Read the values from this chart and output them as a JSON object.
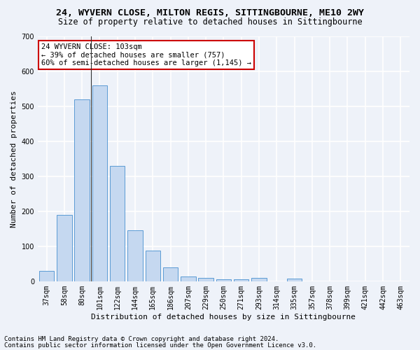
{
  "title1": "24, WYVERN CLOSE, MILTON REGIS, SITTINGBOURNE, ME10 2WY",
  "title2": "Size of property relative to detached houses in Sittingbourne",
  "xlabel": "Distribution of detached houses by size in Sittingbourne",
  "ylabel": "Number of detached properties",
  "footnote1": "Contains HM Land Registry data © Crown copyright and database right 2024.",
  "footnote2": "Contains public sector information licensed under the Open Government Licence v3.0.",
  "annotation_line1": "24 WYVERN CLOSE: 103sqm",
  "annotation_line2": "← 39% of detached houses are smaller (757)",
  "annotation_line3": "60% of semi-detached houses are larger (1,145) →",
  "categories": [
    "37sqm",
    "58sqm",
    "80sqm",
    "101sqm",
    "122sqm",
    "144sqm",
    "165sqm",
    "186sqm",
    "207sqm",
    "229sqm",
    "250sqm",
    "271sqm",
    "293sqm",
    "314sqm",
    "335sqm",
    "357sqm",
    "378sqm",
    "399sqm",
    "421sqm",
    "442sqm",
    "463sqm"
  ],
  "values": [
    30,
    190,
    520,
    560,
    330,
    145,
    87,
    40,
    13,
    10,
    5,
    5,
    10,
    0,
    7,
    0,
    0,
    0,
    0,
    0,
    0
  ],
  "bar_color": "#c5d8f0",
  "bar_edge_color": "#5b9bd5",
  "vline_color": "#333333",
  "annotation_box_edge": "#cc0000",
  "annotation_box_face": "#ffffff",
  "ylim": [
    0,
    700
  ],
  "yticks": [
    0,
    100,
    200,
    300,
    400,
    500,
    600,
    700
  ],
  "background_color": "#eef2f9",
  "grid_color": "#ffffff",
  "title1_fontsize": 9.5,
  "title2_fontsize": 8.5,
  "xlabel_fontsize": 8,
  "ylabel_fontsize": 8,
  "tick_fontsize": 7,
  "annotation_fontsize": 7.5,
  "footnote_fontsize": 6.5,
  "vline_x": 3.0
}
